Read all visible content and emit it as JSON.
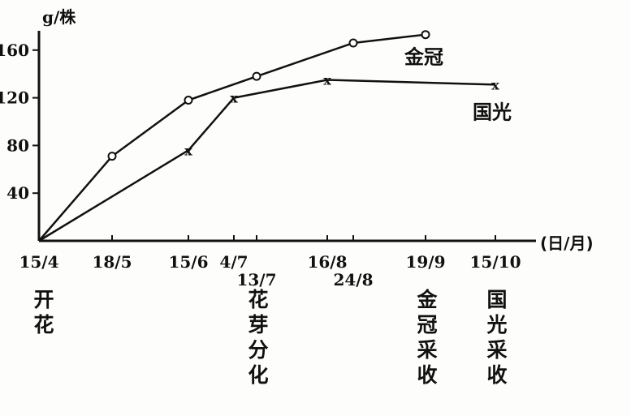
{
  "chart_data": {
    "type": "line",
    "ylabel": "g/株",
    "xlabel": "(日/月)",
    "ylim": [
      0,
      175
    ],
    "yticks": [
      40,
      80,
      120,
      160
    ],
    "xticks": [
      "15/4",
      "18/5",
      "15/6",
      "4/7",
      "13/7",
      "16/8",
      "24/8",
      "19/9",
      "15/10"
    ],
    "grid": false,
    "series": [
      {
        "name": "金冠",
        "marker": "circle",
        "x": [
          "15/4",
          "18/5",
          "15/6",
          "13/7",
          "24/8",
          "19/9"
        ],
        "y": [
          0,
          71,
          118,
          138,
          166,
          173
        ]
      },
      {
        "name": "国光",
        "marker": "x",
        "x": [
          "15/4",
          "15/6",
          "4/7",
          "16/8",
          "15/10"
        ],
        "y": [
          0,
          76,
          120,
          135,
          131
        ]
      }
    ],
    "annotations": [
      {
        "at": "15/4",
        "text": "开花"
      },
      {
        "at": "13/7",
        "text": "花芽分化"
      },
      {
        "at": "19/9",
        "text": "金冠采收"
      },
      {
        "at": "15/10",
        "text": "国光采收"
      }
    ]
  }
}
